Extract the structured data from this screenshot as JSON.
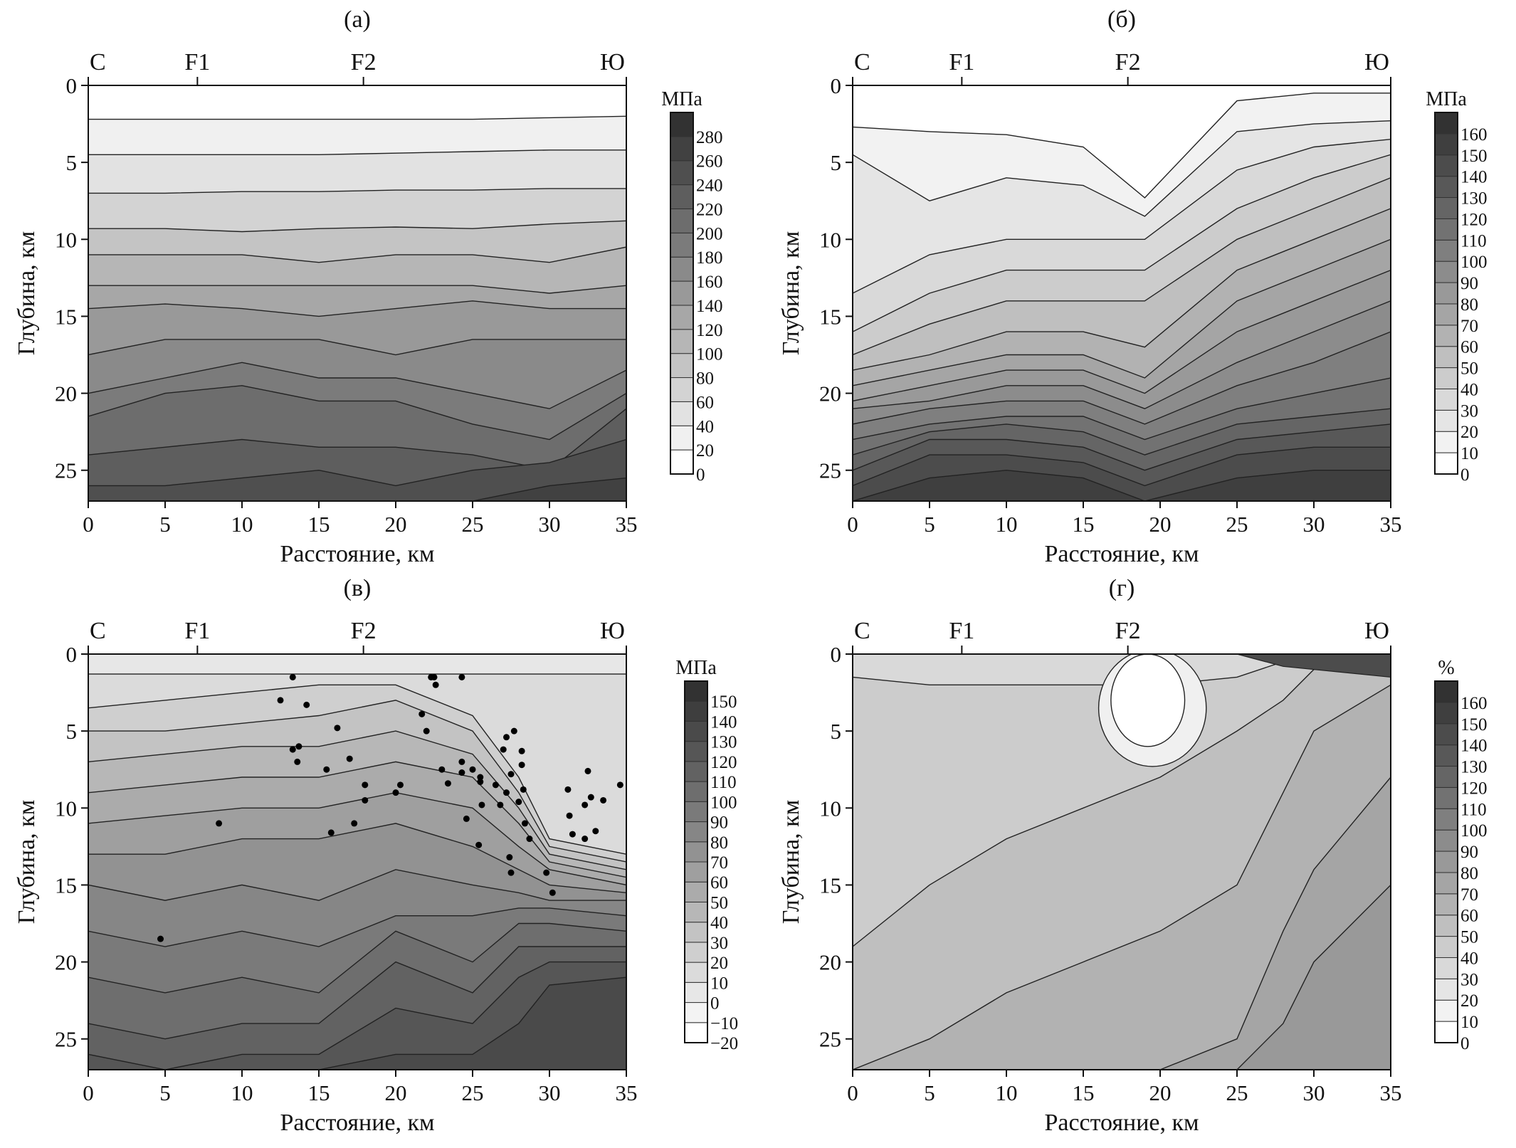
{
  "chart_data": [
    {
      "id": "a",
      "type": "heatmap",
      "title": "(а)",
      "xlabel": "Расстояние, км",
      "ylabel": "Глубина, км",
      "xlim": [
        0,
        35
      ],
      "ylim": [
        27,
        0
      ],
      "x_ticks": [
        0,
        5,
        10,
        15,
        20,
        25,
        30,
        35
      ],
      "y_ticks": [
        0,
        5,
        10,
        15,
        20,
        25
      ],
      "top_markers": [
        {
          "label": "С",
          "x": 0
        },
        {
          "label": "F1",
          "x": 7.1
        },
        {
          "label": "F2",
          "x": 17.9
        },
        {
          "label": "Ю",
          "x": 35
        }
      ],
      "colorbar": {
        "unit": "МПа",
        "levels": [
          "0",
          "20",
          "40",
          "60",
          "80",
          "100",
          "120",
          "140",
          "160",
          "180",
          "200",
          "220",
          "240",
          "260",
          "280"
        ]
      },
      "start_band": 0,
      "contour_x": [
        0,
        5,
        10,
        15,
        20,
        25,
        30,
        35
      ],
      "contour_depths": [
        [
          2.2,
          2.2,
          2.2,
          2.2,
          2.2,
          2.2,
          2.1,
          2.0
        ],
        [
          4.5,
          4.5,
          4.5,
          4.5,
          4.4,
          4.3,
          4.2,
          4.2
        ],
        [
          7.0,
          7.0,
          6.9,
          6.9,
          6.8,
          6.8,
          6.7,
          6.7
        ],
        [
          9.3,
          9.3,
          9.5,
          9.3,
          9.2,
          9.3,
          9.0,
          8.8
        ],
        [
          11.0,
          11.0,
          11.0,
          11.5,
          11.0,
          11.0,
          11.5,
          10.5
        ],
        [
          13.0,
          13.0,
          13.0,
          13.0,
          13.0,
          13.0,
          13.5,
          13.0
        ],
        [
          14.5,
          14.2,
          14.5,
          15.0,
          14.5,
          14.0,
          14.5,
          14.5
        ],
        [
          17.5,
          16.5,
          16.5,
          16.5,
          17.5,
          16.5,
          16.5,
          16.5
        ],
        [
          20.0,
          19.0,
          18.0,
          19.0,
          19.0,
          20.0,
          21.0,
          18.5
        ],
        [
          21.5,
          20.0,
          19.5,
          20.5,
          20.5,
          22.0,
          23.0,
          20.0
        ],
        [
          24.0,
          23.5,
          23.0,
          23.5,
          23.5,
          24.0,
          25.0,
          21.0
        ],
        [
          26.0,
          26.0,
          25.5,
          25.0,
          26.0,
          25.0,
          24.5,
          23.0
        ],
        [
          27.0,
          27.0,
          27.0,
          27.0,
          27.0,
          27.0,
          26.0,
          25.5
        ]
      ]
    },
    {
      "id": "b",
      "type": "heatmap",
      "title": "(б)",
      "xlabel": "Расстояние, км",
      "ylabel": "Глубина, км",
      "xlim": [
        0,
        35
      ],
      "ylim": [
        27,
        0
      ],
      "x_ticks": [
        0,
        5,
        10,
        15,
        20,
        25,
        30,
        35
      ],
      "y_ticks": [
        0,
        5,
        10,
        15,
        20,
        25
      ],
      "top_markers": [
        {
          "label": "С",
          "x": 0
        },
        {
          "label": "F1",
          "x": 7.1
        },
        {
          "label": "F2",
          "x": 17.9
        },
        {
          "label": "Ю",
          "x": 35
        }
      ],
      "colorbar": {
        "unit": "МПа",
        "levels": [
          "0",
          "10",
          "20",
          "30",
          "40",
          "50",
          "60",
          "70",
          "80",
          "90",
          "100",
          "110",
          "120",
          "130",
          "140",
          "150",
          "160"
        ]
      },
      "start_band": 0,
      "contour_x": [
        0,
        5,
        10,
        15,
        19,
        25,
        30,
        35
      ],
      "contour_depths": [
        [
          2.7,
          3.0,
          3.2,
          4.0,
          7.3,
          1.0,
          0.5,
          0.5
        ],
        [
          4.5,
          7.5,
          6.0,
          6.5,
          8.5,
          3.0,
          2.5,
          2.3
        ],
        [
          13.5,
          11.0,
          10.0,
          10.0,
          10.0,
          5.5,
          4.0,
          3.5
        ],
        [
          16.0,
          13.5,
          12.0,
          12.0,
          12.0,
          8.0,
          6.0,
          4.5
        ],
        [
          17.5,
          15.5,
          14.0,
          14.0,
          14.0,
          10.0,
          8.0,
          6.0
        ],
        [
          18.5,
          17.5,
          16.0,
          16.0,
          17.0,
          12.0,
          10.0,
          8.0
        ],
        [
          19.5,
          18.5,
          17.5,
          17.5,
          19.0,
          14.0,
          12.0,
          10.0
        ],
        [
          20.5,
          19.5,
          18.5,
          18.5,
          20.0,
          16.0,
          14.0,
          12.0
        ],
        [
          21.0,
          20.5,
          19.5,
          19.5,
          21.0,
          18.0,
          16.0,
          14.0
        ],
        [
          22.0,
          21.0,
          20.5,
          20.5,
          22.0,
          19.5,
          18.0,
          16.0
        ],
        [
          23.0,
          22.0,
          21.5,
          21.5,
          23.0,
          21.0,
          20.0,
          19.0
        ],
        [
          24.0,
          22.5,
          22.0,
          22.5,
          24.0,
          22.0,
          21.5,
          21.0
        ],
        [
          25.0,
          23.0,
          23.0,
          23.5,
          25.0,
          23.0,
          22.5,
          22.0
        ],
        [
          26.0,
          24.0,
          24.0,
          24.5,
          26.0,
          24.0,
          23.5,
          23.5
        ],
        [
          27.0,
          25.5,
          25.0,
          25.5,
          27.0,
          25.5,
          25.0,
          25.0
        ]
      ]
    },
    {
      "id": "c",
      "type": "heatmap",
      "title": "(в)",
      "xlabel": "Расстояние, км",
      "ylabel": "Глубина, км",
      "xlim": [
        0,
        35
      ],
      "ylim": [
        27,
        0
      ],
      "x_ticks": [
        0,
        5,
        10,
        15,
        20,
        25,
        30,
        35
      ],
      "y_ticks": [
        0,
        5,
        10,
        15,
        20,
        25
      ],
      "top_markers": [
        {
          "label": "С",
          "x": 0
        },
        {
          "label": "F1",
          "x": 7.1
        },
        {
          "label": "F2",
          "x": 17.9
        },
        {
          "label": "Ю",
          "x": 35
        }
      ],
      "colorbar": {
        "unit": "МПа",
        "levels": [
          "−20",
          "−10",
          "0",
          "10",
          "20",
          "30",
          "40",
          "50",
          "60",
          "70",
          "80",
          "90",
          "100",
          "110",
          "120",
          "130",
          "140",
          "150"
        ]
      },
      "start_band": 2,
      "contour_x": [
        0,
        5,
        10,
        15,
        20,
        25,
        28,
        30,
        35
      ],
      "contour_depths": [
        [
          1.3,
          1.3,
          1.3,
          1.3,
          1.3,
          1.3,
          1.3,
          1.3,
          1.3
        ],
        [
          3.5,
          3.0,
          2.5,
          2.0,
          2.0,
          4.0,
          8.0,
          12.0,
          13.0
        ],
        [
          5.0,
          5.0,
          4.5,
          4.0,
          3.0,
          5.0,
          9.0,
          12.5,
          13.5
        ],
        [
          7.0,
          6.5,
          6.0,
          6.0,
          5.0,
          6.5,
          10.0,
          13.0,
          14.0
        ],
        [
          9.0,
          8.5,
          8.0,
          8.0,
          7.0,
          8.0,
          11.0,
          13.5,
          14.5
        ],
        [
          11.0,
          10.5,
          10.0,
          10.0,
          9.0,
          10.0,
          12.5,
          14.0,
          15.0
        ],
        [
          13.0,
          13.0,
          12.0,
          12.0,
          11.0,
          12.5,
          14.0,
          15.0,
          15.5
        ],
        [
          15.0,
          16.0,
          15.0,
          16.0,
          14.0,
          15.0,
          15.5,
          16.0,
          16.0
        ],
        [
          18.0,
          19.0,
          18.0,
          19.0,
          17.0,
          17.0,
          16.5,
          16.5,
          17.0
        ],
        [
          21.0,
          22.0,
          21.0,
          22.0,
          18.0,
          20.0,
          17.5,
          17.5,
          18.0
        ],
        [
          24.0,
          25.0,
          24.0,
          24.0,
          20.0,
          22.0,
          19.0,
          19.0,
          19.0
        ],
        [
          26.0,
          27.0,
          26.0,
          26.0,
          23.0,
          24.0,
          21.0,
          20.0,
          20.0
        ],
        [
          27.0,
          27.0,
          27.0,
          27.0,
          26.0,
          26.0,
          24.0,
          21.5,
          21.0
        ]
      ],
      "events": [
        [
          13.3,
          1.5
        ],
        [
          12.5,
          3.0
        ],
        [
          14.2,
          3.3
        ],
        [
          13.3,
          6.2
        ],
        [
          13.7,
          6.0
        ],
        [
          13.6,
          7.0
        ],
        [
          16.2,
          4.8
        ],
        [
          15.5,
          7.5
        ],
        [
          17.0,
          6.8
        ],
        [
          18.0,
          8.5
        ],
        [
          18.0,
          9.5
        ],
        [
          17.3,
          11.0
        ],
        [
          15.8,
          11.6
        ],
        [
          20.0,
          9.0
        ],
        [
          20.3,
          8.5
        ],
        [
          21.7,
          3.9
        ],
        [
          22.0,
          5.0
        ],
        [
          22.3,
          1.5
        ],
        [
          22.5,
          1.5
        ],
        [
          22.6,
          2.0
        ],
        [
          24.3,
          1.5
        ],
        [
          24.3,
          7.0
        ],
        [
          24.3,
          7.7
        ],
        [
          23.4,
          8.4
        ],
        [
          23.0,
          7.5
        ],
        [
          25.0,
          7.5
        ],
        [
          25.5,
          8.0
        ],
        [
          25.5,
          8.3
        ],
        [
          24.6,
          10.7
        ],
        [
          25.4,
          12.4
        ],
        [
          25.6,
          9.8
        ],
        [
          26.5,
          8.5
        ],
        [
          26.8,
          9.8
        ],
        [
          27.0,
          6.2
        ],
        [
          27.2,
          5.4
        ],
        [
          27.7,
          5.0
        ],
        [
          28.2,
          6.3
        ],
        [
          28.2,
          7.2
        ],
        [
          27.5,
          7.8
        ],
        [
          27.2,
          9.0
        ],
        [
          28.0,
          9.6
        ],
        [
          28.3,
          8.8
        ],
        [
          28.4,
          11.0
        ],
        [
          28.7,
          12.0
        ],
        [
          27.4,
          13.2
        ],
        [
          27.5,
          14.2
        ],
        [
          29.8,
          14.2
        ],
        [
          30.2,
          15.5
        ],
        [
          31.2,
          8.8
        ],
        [
          31.3,
          10.5
        ],
        [
          31.5,
          11.7
        ],
        [
          32.3,
          9.8
        ],
        [
          32.7,
          9.3
        ],
        [
          32.3,
          12.0
        ],
        [
          33.0,
          11.5
        ],
        [
          33.5,
          9.5
        ],
        [
          34.6,
          8.5
        ],
        [
          32.5,
          7.6
        ],
        [
          8.5,
          11.0
        ],
        [
          4.7,
          18.5
        ]
      ]
    },
    {
      "id": "d",
      "type": "heatmap",
      "title": "(г)",
      "xlabel": "Расстояние, км",
      "ylabel": "Глубина, км",
      "xlim": [
        0,
        35
      ],
      "ylim": [
        27,
        0
      ],
      "x_ticks": [
        0,
        5,
        10,
        15,
        20,
        25,
        30,
        35
      ],
      "y_ticks": [
        0,
        5,
        10,
        15,
        20,
        25
      ],
      "top_markers": [
        {
          "label": "С",
          "x": 0
        },
        {
          "label": "F1",
          "x": 7.1
        },
        {
          "label": "F2",
          "x": 17.9
        },
        {
          "label": "Ю",
          "x": 35
        }
      ],
      "colorbar": {
        "unit": "%",
        "levels": [
          "0",
          "10",
          "20",
          "30",
          "40",
          "50",
          "60",
          "70",
          "80",
          "90",
          "100",
          "110",
          "120",
          "130",
          "140",
          "150",
          "160"
        ]
      },
      "start_band": 3,
      "contour_x": [
        0,
        5,
        10,
        15,
        20,
        25,
        28,
        30,
        35
      ],
      "contour_depths": [
        [
          1.5,
          2.0,
          2.0,
          2.0,
          2.0,
          1.5,
          0.5,
          0.3,
          0.3
        ],
        [
          19.0,
          15.0,
          12.0,
          10.0,
          8.0,
          5.0,
          3.0,
          1.0,
          1.0
        ],
        [
          27.0,
          25.0,
          22.0,
          20.0,
          18.0,
          15.0,
          9.0,
          5.0,
          2.0
        ],
        [
          27.0,
          27.0,
          27.0,
          27.0,
          27.0,
          25.0,
          18.0,
          14.0,
          8.0
        ],
        [
          27.0,
          27.0,
          27.0,
          27.0,
          27.0,
          27.0,
          24.0,
          20.0,
          15.0
        ]
      ],
      "low_zone": {
        "x": 19.5,
        "depth": 3.5,
        "value_band": 0
      },
      "high_zone": {
        "x_from": 25,
        "depth_to": 1.5,
        "value_band": 14
      }
    }
  ]
}
